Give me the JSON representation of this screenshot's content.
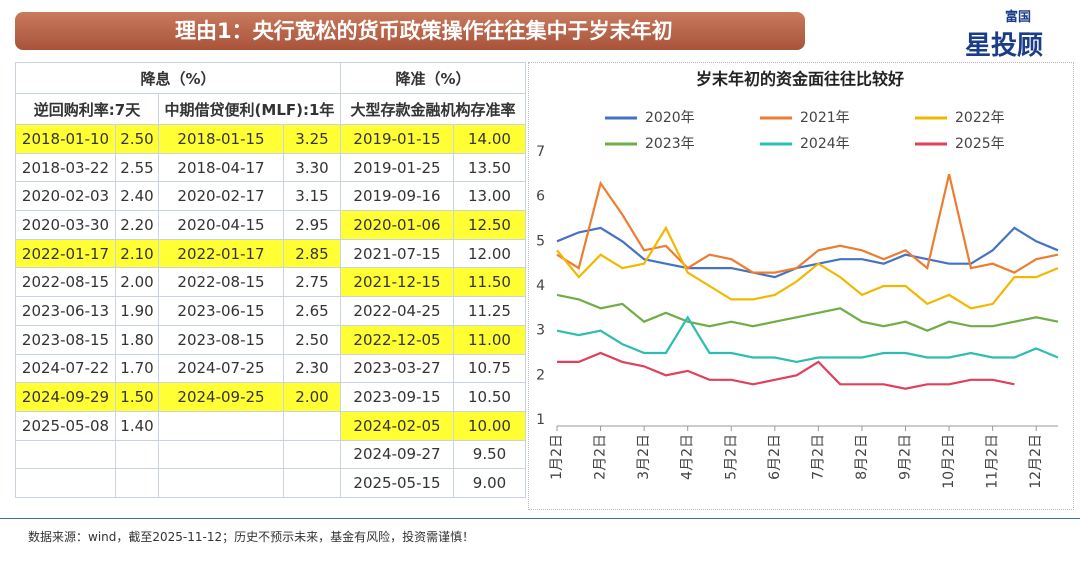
{
  "header": {
    "title": "理由1：央行宽松的货币政策操作往往集中于岁末年初",
    "logo_top": "富国",
    "logo_main": "星投顾"
  },
  "table": {
    "rate_cut_header": "降息（%）",
    "rrr_header": "降准（%）",
    "reverse_repo_header": "逆回购利率:7天",
    "mlf_header": "中期借贷便利(MLF):1年",
    "rrr_sub_header": "大型存款金融机构存准率",
    "highlight_color": "#ffff33",
    "reverse_repo": [
      {
        "date": "2018-01-10",
        "rate": "2.50",
        "highlight": true
      },
      {
        "date": "2018-03-22",
        "rate": "2.55",
        "highlight": false
      },
      {
        "date": "2020-02-03",
        "rate": "2.40",
        "highlight": false
      },
      {
        "date": "2020-03-30",
        "rate": "2.20",
        "highlight": false
      },
      {
        "date": "2022-01-17",
        "rate": "2.10",
        "highlight": true
      },
      {
        "date": "2022-08-15",
        "rate": "2.00",
        "highlight": false
      },
      {
        "date": "2023-06-13",
        "rate": "1.90",
        "highlight": false
      },
      {
        "date": "2023-08-15",
        "rate": "1.80",
        "highlight": false
      },
      {
        "date": "2024-07-22",
        "rate": "1.70",
        "highlight": false
      },
      {
        "date": "2024-09-29",
        "rate": "1.50",
        "highlight": true
      },
      {
        "date": "2025-05-08",
        "rate": "1.40",
        "highlight": false
      }
    ],
    "mlf": [
      {
        "date": "2018-01-15",
        "rate": "3.25",
        "highlight": true
      },
      {
        "date": "2018-04-17",
        "rate": "3.30",
        "highlight": false
      },
      {
        "date": "2020-02-17",
        "rate": "3.15",
        "highlight": false
      },
      {
        "date": "2020-04-15",
        "rate": "2.95",
        "highlight": false
      },
      {
        "date": "2022-01-17",
        "rate": "2.85",
        "highlight": true
      },
      {
        "date": "2022-08-15",
        "rate": "2.75",
        "highlight": false
      },
      {
        "date": "2023-06-15",
        "rate": "2.65",
        "highlight": false
      },
      {
        "date": "2023-08-15",
        "rate": "2.50",
        "highlight": false
      },
      {
        "date": "2024-07-25",
        "rate": "2.30",
        "highlight": false
      },
      {
        "date": "2024-09-25",
        "rate": "2.00",
        "highlight": true
      }
    ],
    "rrr": [
      {
        "date": "2019-01-15",
        "rate": "14.00",
        "highlight": true
      },
      {
        "date": "2019-01-25",
        "rate": "13.50",
        "highlight": false
      },
      {
        "date": "2019-09-16",
        "rate": "13.00",
        "highlight": false
      },
      {
        "date": "2020-01-06",
        "rate": "12.50",
        "highlight": true
      },
      {
        "date": "2021-07-15",
        "rate": "12.00",
        "highlight": false
      },
      {
        "date": "2021-12-15",
        "rate": "11.50",
        "highlight": true
      },
      {
        "date": "2022-04-25",
        "rate": "11.25",
        "highlight": false
      },
      {
        "date": "2022-12-05",
        "rate": "11.00",
        "highlight": true
      },
      {
        "date": "2023-03-27",
        "rate": "10.75",
        "highlight": false
      },
      {
        "date": "2023-09-15",
        "rate": "10.50",
        "highlight": false
      },
      {
        "date": "2024-02-05",
        "rate": "10.00",
        "highlight": true
      },
      {
        "date": "2024-09-27",
        "rate": "9.50",
        "highlight": false
      },
      {
        "date": "2025-05-15",
        "rate": "9.00",
        "highlight": false
      }
    ]
  },
  "chart_data": {
    "type": "line",
    "title": "岁末年初的资金面往往比较好",
    "categories": [
      "1月2日",
      null,
      "2月2日",
      null,
      "3月2日",
      null,
      "4月2日",
      null,
      "5月2日",
      null,
      "6月2日",
      null,
      "7月2日",
      null,
      "8月2日",
      null,
      "9月2日",
      null,
      "10月2日",
      null,
      "11月2日",
      null,
      "12月2日",
      null
    ],
    "series": [
      {
        "name": "2020年",
        "color": "#4472c4",
        "values": [
          5.0,
          5.2,
          5.3,
          5.0,
          4.6,
          4.5,
          4.4,
          4.4,
          4.4,
          4.3,
          4.2,
          4.4,
          4.5,
          4.6,
          4.6,
          4.5,
          4.7,
          4.6,
          4.5,
          4.5,
          4.8,
          5.3,
          5.0,
          4.8
        ]
      },
      {
        "name": "2021年",
        "color": "#ed7d31",
        "values": [
          4.7,
          4.4,
          6.3,
          5.6,
          4.8,
          4.9,
          4.4,
          4.7,
          4.6,
          4.3,
          4.3,
          4.4,
          4.8,
          4.9,
          4.8,
          4.6,
          4.8,
          4.4,
          6.5,
          4.4,
          4.5,
          4.3,
          4.6,
          4.7
        ]
      },
      {
        "name": "2022年",
        "color": "#f2b800",
        "values": [
          4.8,
          4.2,
          4.7,
          4.4,
          4.5,
          5.3,
          4.3,
          4.0,
          3.7,
          3.7,
          3.8,
          4.1,
          4.5,
          4.2,
          3.8,
          4.0,
          4.0,
          3.6,
          3.8,
          3.5,
          3.6,
          4.2,
          4.2,
          4.4
        ]
      },
      {
        "name": "2023年",
        "color": "#70ad47",
        "values": [
          3.8,
          3.7,
          3.5,
          3.6,
          3.2,
          3.4,
          3.2,
          3.1,
          3.2,
          3.1,
          3.2,
          3.3,
          3.4,
          3.5,
          3.2,
          3.1,
          3.2,
          3.0,
          3.2,
          3.1,
          3.1,
          3.2,
          3.3,
          3.2
        ]
      },
      {
        "name": "2024年",
        "color": "#2ebdb5",
        "values": [
          3.0,
          2.9,
          3.0,
          2.7,
          2.5,
          2.5,
          3.3,
          2.5,
          2.5,
          2.4,
          2.4,
          2.3,
          2.4,
          2.4,
          2.4,
          2.5,
          2.5,
          2.4,
          2.4,
          2.5,
          2.4,
          2.4,
          2.6,
          2.4
        ]
      },
      {
        "name": "2025年",
        "color": "#e0405a",
        "values": [
          2.3,
          2.3,
          2.5,
          2.3,
          2.2,
          2.0,
          2.1,
          1.9,
          1.9,
          1.8,
          1.9,
          2.0,
          2.3,
          1.8,
          1.8,
          1.8,
          1.7,
          1.8,
          1.8,
          1.9,
          1.9,
          1.8,
          null,
          null
        ]
      }
    ],
    "ylim": [
      1,
      7
    ],
    "yticks": [
      1,
      2,
      3,
      4,
      5,
      6,
      7
    ]
  },
  "footer": "数据来源：wind，截至2025-11-12；历史不预示未来，基金有风险，投资需谨慎！"
}
